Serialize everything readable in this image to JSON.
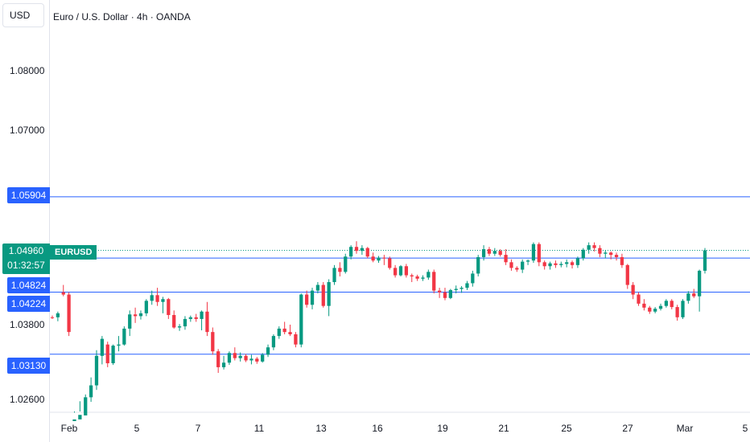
{
  "header": {
    "currency": "USD",
    "title": "Euro / U.S. Dollar · 4h · OANDA"
  },
  "y_ticks": [
    "1.08000",
    "1.07000",
    "1.03800",
    "1.02600"
  ],
  "x_ticks": [
    "Feb",
    "5",
    "7",
    "11",
    "13",
    "16",
    "19",
    "21",
    "25",
    "27",
    "Mar",
    "5"
  ],
  "price_labels": {
    "line1": "1.05904",
    "line2": "1.04824",
    "line3": "1.04224",
    "line4": "1.03130",
    "current_price": "1.04960",
    "countdown": "01:32:57",
    "symbol": "EURUSD"
  },
  "colors": {
    "up": "#089981",
    "down": "#f23645",
    "level_line": "#2962ff",
    "price_line": "#089981"
  },
  "chart_data": {
    "type": "candlestick",
    "title": "Euro / U.S. Dollar · 4h · OANDA",
    "symbol": "EURUSD",
    "ylabel": "USD",
    "ylim": [
      1.0212,
      1.0923
    ],
    "ticks": {
      "y": [
        1.08,
        1.07,
        1.038,
        1.026
      ]
    },
    "horizontal_levels": [
      1.05904,
      1.04824,
      1.04224,
      1.0313
    ],
    "last_price": 1.0496,
    "candles": [
      [
        1.0378,
        1.0381,
        1.0375,
        1.0377
      ],
      [
        1.0378,
        1.0388,
        1.0371,
        1.0385
      ],
      [
        1.0422,
        1.0435,
        1.0415,
        1.0418
      ],
      [
        1.0418,
        1.0422,
        1.0345,
        1.0352
      ],
      [
        1.0195,
        1.021,
        1.0185,
        1.0198
      ],
      [
        1.0198,
        1.023,
        1.0195,
        1.0206
      ],
      [
        1.0205,
        1.0242,
        1.02,
        1.0237
      ],
      [
        1.0237,
        1.0272,
        1.0229,
        1.0258
      ],
      [
        1.0258,
        1.032,
        1.025,
        1.031
      ],
      [
        1.031,
        1.0345,
        1.0295,
        1.034
      ],
      [
        1.033,
        1.0335,
        1.029,
        1.0297
      ],
      [
        1.0297,
        1.033,
        1.0294,
        1.0328
      ],
      [
        1.0328,
        1.0345,
        1.0318,
        1.033
      ],
      [
        1.033,
        1.0362,
        1.0328,
        1.0358
      ],
      [
        1.0358,
        1.039,
        1.0345,
        1.0383
      ],
      [
        1.0383,
        1.0395,
        1.0368,
        1.038
      ],
      [
        1.038,
        1.039,
        1.0374,
        1.0385
      ],
      [
        1.0385,
        1.041,
        1.038,
        1.0407
      ],
      [
        1.0407,
        1.0425,
        1.04,
        1.0417
      ],
      [
        1.0417,
        1.043,
        1.0398,
        1.0405
      ],
      [
        1.0405,
        1.0414,
        1.0385,
        1.041
      ],
      [
        1.041,
        1.0412,
        1.0375,
        1.0382
      ],
      [
        1.0382,
        1.039,
        1.0358,
        1.036
      ],
      [
        1.036,
        1.0366,
        1.0354,
        1.0362
      ],
      [
        1.0362,
        1.038,
        1.0356,
        1.0375
      ],
      [
        1.0375,
        1.0381,
        1.037,
        1.0378
      ],
      [
        1.0378,
        1.0384,
        1.037,
        1.0375
      ],
      [
        1.0375,
        1.039,
        1.0355,
        1.0388
      ],
      [
        1.0388,
        1.0405,
        1.0345,
        1.0352
      ],
      [
        1.0352,
        1.036,
        1.0312,
        1.0318
      ],
      [
        1.0318,
        1.0322,
        1.028,
        1.029
      ],
      [
        1.029,
        1.031,
        1.0286,
        1.0298
      ],
      [
        1.0298,
        1.0318,
        1.0294,
        1.0315
      ],
      [
        1.0315,
        1.0325,
        1.0302,
        1.0306
      ],
      [
        1.0306,
        1.0316,
        1.03,
        1.031
      ],
      [
        1.031,
        1.0313,
        1.0299,
        1.0302
      ],
      [
        1.0302,
        1.0312,
        1.0295,
        1.0305
      ],
      [
        1.0305,
        1.0308,
        1.0296,
        1.03
      ],
      [
        1.03,
        1.0315,
        1.0298,
        1.0312
      ],
      [
        1.0312,
        1.033,
        1.0308,
        1.0325
      ],
      [
        1.0325,
        1.0348,
        1.032,
        1.0345
      ],
      [
        1.0345,
        1.0362,
        1.034,
        1.0358
      ],
      [
        1.0358,
        1.037,
        1.0348,
        1.0352
      ],
      [
        1.0352,
        1.0365,
        1.0345,
        1.0348
      ],
      [
        1.0348,
        1.0352,
        1.0325,
        1.033
      ],
      [
        1.033,
        1.042,
        1.0325,
        1.0418
      ],
      [
        1.0418,
        1.0425,
        1.0395,
        1.04
      ],
      [
        1.04,
        1.043,
        1.0392,
        1.0425
      ],
      [
        1.0425,
        1.044,
        1.042,
        1.0435
      ],
      [
        1.0435,
        1.044,
        1.0395,
        1.0398
      ],
      [
        1.0398,
        1.0445,
        1.038,
        1.044
      ],
      [
        1.044,
        1.047,
        1.0435,
        1.0465
      ],
      [
        1.0465,
        1.0475,
        1.045,
        1.0458
      ],
      [
        1.0458,
        1.049,
        1.0455,
        1.0485
      ],
      [
        1.0485,
        1.0505,
        1.048,
        1.0502
      ],
      [
        1.0502,
        1.0512,
        1.049,
        1.0495
      ],
      [
        1.0495,
        1.0505,
        1.0488,
        1.05
      ],
      [
        1.05,
        1.0502,
        1.0482,
        1.0485
      ],
      [
        1.0485,
        1.0492,
        1.0475,
        1.0478
      ],
      [
        1.0478,
        1.0486,
        1.0474,
        1.0483
      ],
      [
        1.0483,
        1.0488,
        1.047,
        1.0482
      ],
      [
        1.0482,
        1.0485,
        1.0462,
        1.0465
      ],
      [
        1.0465,
        1.047,
        1.0448,
        1.0452
      ],
      [
        1.0452,
        1.047,
        1.045,
        1.0468
      ],
      [
        1.0468,
        1.0472,
        1.0448,
        1.0452
      ],
      [
        1.0452,
        1.0455,
        1.044,
        1.045
      ],
      [
        1.045,
        1.0453,
        1.0442,
        1.0446
      ],
      [
        1.0446,
        1.0452,
        1.0442,
        1.0448
      ],
      [
        1.0448,
        1.0462,
        1.0444,
        1.0458
      ],
      [
        1.0458,
        1.0462,
        1.042,
        1.0425
      ],
      [
        1.0425,
        1.043,
        1.0412,
        1.0422
      ],
      [
        1.0422,
        1.043,
        1.0408,
        1.0412
      ],
      [
        1.0412,
        1.0428,
        1.041,
        1.0426
      ],
      [
        1.0426,
        1.0434,
        1.042,
        1.0428
      ],
      [
        1.0428,
        1.0433,
        1.0421,
        1.043
      ],
      [
        1.043,
        1.0442,
        1.0426,
        1.0438
      ],
      [
        1.0438,
        1.046,
        1.0432,
        1.0455
      ],
      [
        1.0455,
        1.0488,
        1.045,
        1.0484
      ],
      [
        1.0484,
        1.0505,
        1.0478,
        1.0498
      ],
      [
        1.0498,
        1.0502,
        1.0486,
        1.049
      ],
      [
        1.049,
        1.05,
        1.0486,
        1.0495
      ],
      [
        1.0495,
        1.0498,
        1.0485,
        1.0488
      ],
      [
        1.0488,
        1.0498,
        1.047,
        1.0475
      ],
      [
        1.0475,
        1.048,
        1.046,
        1.0465
      ],
      [
        1.0465,
        1.0468,
        1.0458,
        1.0462
      ],
      [
        1.0462,
        1.048,
        1.0456,
        1.0476
      ],
      [
        1.0476,
        1.048,
        1.047,
        1.0478
      ],
      [
        1.0478,
        1.051,
        1.0474,
        1.0507
      ],
      [
        1.0507,
        1.051,
        1.0468,
        1.0475
      ],
      [
        1.0475,
        1.0478,
        1.0462,
        1.0468
      ],
      [
        1.0468,
        1.0476,
        1.0462,
        1.0473
      ],
      [
        1.0473,
        1.0478,
        1.0465,
        1.047
      ],
      [
        1.047,
        1.0476,
        1.0466,
        1.0472
      ],
      [
        1.0472,
        1.048,
        1.0466,
        1.0475
      ],
      [
        1.0475,
        1.0478,
        1.0464,
        1.047
      ],
      [
        1.047,
        1.0485,
        1.0465,
        1.0482
      ],
      [
        1.0482,
        1.05,
        1.0478,
        1.0497
      ],
      [
        1.0497,
        1.051,
        1.049,
        1.0505
      ],
      [
        1.0505,
        1.051,
        1.0494,
        1.05
      ],
      [
        1.05,
        1.0505,
        1.0484,
        1.049
      ],
      [
        1.049,
        1.0496,
        1.0482,
        1.0492
      ],
      [
        1.0492,
        1.0494,
        1.048,
        1.0488
      ],
      [
        1.0488,
        1.0492,
        1.0478,
        1.0484
      ],
      [
        1.0484,
        1.049,
        1.0465,
        1.047
      ],
      [
        1.047,
        1.0472,
        1.0428,
        1.0435
      ],
      [
        1.0435,
        1.044,
        1.041,
        1.0418
      ],
      [
        1.0418,
        1.0422,
        1.0398,
        1.0402
      ],
      [
        1.0402,
        1.041,
        1.039,
        1.0395
      ],
      [
        1.0395,
        1.0398,
        1.0384,
        1.0388
      ],
      [
        1.0388,
        1.0396,
        1.0385,
        1.0393
      ],
      [
        1.0393,
        1.0402,
        1.039,
        1.0398
      ],
      [
        1.0398,
        1.041,
        1.0395,
        1.0407
      ],
      [
        1.0407,
        1.041,
        1.0392,
        1.0396
      ],
      [
        1.0396,
        1.04,
        1.0372,
        1.0378
      ],
      [
        1.0378,
        1.041,
        1.0375,
        1.0407
      ],
      [
        1.0407,
        1.0424,
        1.0402,
        1.042
      ],
      [
        1.042,
        1.0428,
        1.0412,
        1.0415
      ],
      [
        1.0415,
        1.0462,
        1.0388,
        1.046
      ],
      [
        1.046,
        1.05,
        1.0455,
        1.0496
      ]
    ]
  }
}
